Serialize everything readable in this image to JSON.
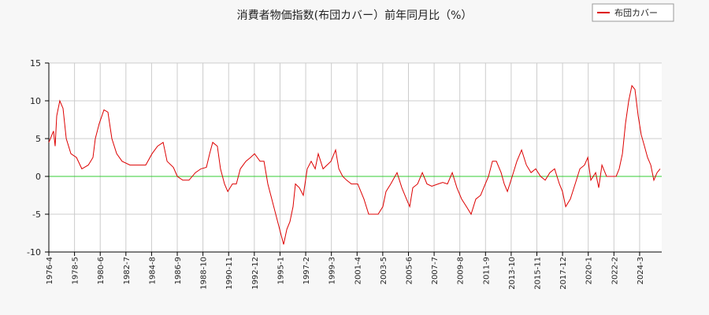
{
  "chart_data": {
    "type": "line",
    "title": "消費者物価指数(布団カバー）前年同月比（%）",
    "series": [
      {
        "name": "布団カバー",
        "color": "#dd0000",
        "x": [
          1976.25,
          1976.63,
          1976.76,
          1976.89,
          1977.14,
          1977.4,
          1977.66,
          1978.04,
          1978.49,
          1978.93,
          1979.45,
          1979.83,
          1980.02,
          1980.34,
          1980.72,
          1981.04,
          1981.36,
          1981.75,
          1982.19,
          1982.83,
          1983.47,
          1984.11,
          1984.62,
          1985.07,
          1985.52,
          1985.84,
          1986.35,
          1986.67,
          1987.11,
          1987.62,
          1988.14,
          1988.58,
          1989.03,
          1989.29,
          1989.54,
          1989.92,
          1990.17,
          1990.5,
          1990.76,
          1991.14,
          1991.46,
          1991.78,
          1992.23,
          1992.61,
          1992.93,
          1993.38,
          1993.7,
          1994.01,
          1994.33,
          1994.65,
          1994.97,
          1995.29,
          1995.55,
          1995.8,
          1996.06,
          1996.25,
          1996.57,
          1996.89,
          1997.21,
          1997.53,
          1997.85,
          1998.1,
          1998.49,
          1998.81,
          1999.13,
          1999.51,
          1999.77,
          2000.08,
          2000.4,
          2000.79,
          2001.3,
          2001.81,
          2002.19,
          2002.58,
          2002.96,
          2003.34,
          2003.6,
          2003.98,
          2004.49,
          2004.88,
          2005.26,
          2005.52,
          2005.77,
          2006.16,
          2006.54,
          2006.92,
          2007.31,
          2007.82,
          2008.2,
          2008.58,
          2008.97,
          2009.35,
          2009.73,
          2010.12,
          2010.5,
          2010.88,
          2011.27,
          2011.52,
          2011.91,
          2012.23,
          2012.55,
          2012.93,
          2013.19,
          2013.44,
          2013.83,
          2014.21,
          2014.59,
          2014.98,
          2015.36,
          2015.74,
          2016.13,
          2016.51,
          2016.89,
          2017.27,
          2017.66,
          2017.91,
          2018.17,
          2018.55,
          2018.94,
          2019.32,
          2019.7,
          2019.96,
          2020.21,
          2020.6,
          2020.85,
          2021.11,
          2021.49,
          2021.87,
          2022.26,
          2022.51,
          2022.77,
          2023.02,
          2023.28,
          2023.54,
          2023.79,
          2024.05,
          2024.3,
          2024.56,
          2024.81,
          2025.07,
          2025.32,
          2025.58,
          2025.83
        ],
        "values": [
          4.5,
          6,
          4,
          8,
          10,
          9,
          5,
          3,
          2.5,
          1,
          1.5,
          2.5,
          5,
          7,
          8.8,
          8.5,
          5,
          3,
          2,
          1.5,
          1.5,
          1.5,
          3,
          4,
          4.5,
          2,
          1.2,
          0,
          -0.5,
          -0.5,
          0.5,
          1,
          1.2,
          3,
          4.5,
          4,
          1,
          -1,
          -2,
          -1,
          -1,
          1,
          2,
          2.5,
          3,
          2,
          2,
          -1,
          -3,
          -5,
          -7,
          -9,
          -7,
          -6,
          -4,
          -1,
          -1.5,
          -2.5,
          1,
          2,
          1,
          3,
          1,
          1.5,
          2,
          3.5,
          1,
          0,
          -0.5,
          -1,
          -1,
          -3,
          -5,
          -5,
          -5,
          -4,
          -2,
          -1,
          0.5,
          -1.5,
          -3,
          -4,
          -1.5,
          -1,
          0.5,
          -1,
          -1.3,
          -1,
          -0.8,
          -1,
          0.5,
          -1.5,
          -3,
          -4,
          -5,
          -3,
          -2.5,
          -1.5,
          0,
          2,
          2,
          0.5,
          -1,
          -2,
          0,
          2,
          3.5,
          1.5,
          0.5,
          1,
          0,
          -0.5,
          0.5,
          1,
          -1,
          -2,
          -4,
          -3,
          -1,
          1,
          1.5,
          2.5,
          -0.5,
          0.5,
          -1.5,
          1.5,
          0,
          0,
          0,
          1,
          3,
          7,
          10,
          12,
          11.5,
          8,
          5.5,
          4,
          2.5,
          1.5,
          -0.5,
          0.5,
          1
        ]
      }
    ],
    "xlim": [
      1976.25,
      2025.96
    ],
    "xticks": [
      {
        "value": 1976.25,
        "label": "1976-4"
      },
      {
        "value": 1978.333,
        "label": "1978-5"
      },
      {
        "value": 1980.417,
        "label": "1980-6"
      },
      {
        "value": 1982.5,
        "label": "1982-7"
      },
      {
        "value": 1984.583,
        "label": "1984-8"
      },
      {
        "value": 1986.667,
        "label": "1986-9"
      },
      {
        "value": 1988.75,
        "label": "1988-10"
      },
      {
        "value": 1990.833,
        "label": "1990-11"
      },
      {
        "value": 1992.917,
        "label": "1992-12"
      },
      {
        "value": 1995,
        "label": "1995-1"
      },
      {
        "value": 1997.083,
        "label": "1997-2"
      },
      {
        "value": 1999.167,
        "label": "1999-3"
      },
      {
        "value": 2001.25,
        "label": "2001-4"
      },
      {
        "value": 2003.333,
        "label": "2003-5"
      },
      {
        "value": 2005.417,
        "label": "2005-6"
      },
      {
        "value": 2007.5,
        "label": "2007-7"
      },
      {
        "value": 2009.583,
        "label": "2009-8"
      },
      {
        "value": 2011.667,
        "label": "2011-9"
      },
      {
        "value": 2013.75,
        "label": "2013-10"
      },
      {
        "value": 2015.833,
        "label": "2015-11"
      },
      {
        "value": 2017.917,
        "label": "2017-12"
      },
      {
        "value": 2020,
        "label": "2020-1"
      },
      {
        "value": 2022.083,
        "label": "2022-2"
      },
      {
        "value": 2024.167,
        "label": "2024-3"
      }
    ],
    "ylim": [
      -10,
      15
    ],
    "yticks": [
      -10,
      -5,
      0,
      5,
      10,
      15
    ],
    "grid": true,
    "zero_line_color": "#33cc33",
    "legend": "top-right"
  }
}
